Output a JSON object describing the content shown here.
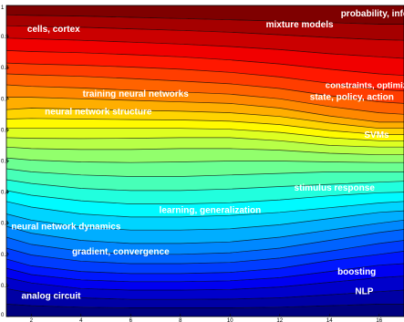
{
  "chart_data": {
    "type": "area",
    "stacked": true,
    "xlim": [
      1,
      17
    ],
    "ylim": [
      0,
      1
    ],
    "x": [
      1,
      2,
      4,
      6,
      8,
      10,
      12,
      14,
      16,
      17
    ],
    "xticks": [
      2,
      4,
      6,
      8,
      10,
      12,
      14,
      16
    ],
    "yticks": [
      0,
      0.1,
      0.2,
      0.3,
      0.4,
      0.5,
      0.6,
      0.7,
      0.8,
      0.9,
      1
    ],
    "colormap": "jet",
    "colormap_stops": [
      "#00007f",
      "#0000ff",
      "#007fff",
      "#00ffff",
      "#7fff7f",
      "#ffff00",
      "#ff7f00",
      "#ff0000",
      "#7f0000"
    ],
    "line_color": "#000000",
    "grid": false,
    "legend": "none",
    "boundaries": [
      [
        0.04,
        0.035,
        0.03,
        0.028,
        0.028,
        0.028,
        0.03,
        0.035,
        0.04,
        0.04
      ],
      [
        0.09,
        0.075,
        0.06,
        0.055,
        0.055,
        0.056,
        0.06,
        0.07,
        0.08,
        0.085
      ],
      [
        0.125,
        0.108,
        0.09,
        0.085,
        0.085,
        0.087,
        0.095,
        0.11,
        0.125,
        0.13
      ],
      [
        0.155,
        0.135,
        0.118,
        0.112,
        0.112,
        0.115,
        0.125,
        0.145,
        0.165,
        0.17
      ],
      [
        0.185,
        0.163,
        0.145,
        0.138,
        0.138,
        0.142,
        0.155,
        0.18,
        0.2,
        0.21
      ],
      [
        0.22,
        0.198,
        0.178,
        0.17,
        0.17,
        0.174,
        0.188,
        0.21,
        0.235,
        0.245
      ],
      [
        0.255,
        0.232,
        0.21,
        0.2,
        0.2,
        0.205,
        0.22,
        0.245,
        0.27,
        0.28
      ],
      [
        0.29,
        0.268,
        0.245,
        0.235,
        0.235,
        0.24,
        0.255,
        0.278,
        0.3,
        0.31
      ],
      [
        0.33,
        0.31,
        0.288,
        0.278,
        0.278,
        0.282,
        0.295,
        0.315,
        0.335,
        0.34
      ],
      [
        0.37,
        0.352,
        0.33,
        0.32,
        0.32,
        0.325,
        0.335,
        0.35,
        0.365,
        0.37
      ],
      [
        0.405,
        0.39,
        0.372,
        0.362,
        0.362,
        0.366,
        0.375,
        0.388,
        0.398,
        0.4
      ],
      [
        0.44,
        0.428,
        0.412,
        0.405,
        0.405,
        0.41,
        0.418,
        0.425,
        0.432,
        0.435
      ],
      [
        0.475,
        0.465,
        0.455,
        0.45,
        0.45,
        0.455,
        0.46,
        0.465,
        0.465,
        0.465
      ],
      [
        0.51,
        0.503,
        0.497,
        0.495,
        0.497,
        0.5,
        0.5,
        0.497,
        0.495,
        0.495
      ],
      [
        0.545,
        0.54,
        0.537,
        0.537,
        0.54,
        0.54,
        0.535,
        0.525,
        0.52,
        0.52
      ],
      [
        0.575,
        0.573,
        0.572,
        0.573,
        0.575,
        0.575,
        0.565,
        0.55,
        0.545,
        0.545
      ],
      [
        0.605,
        0.605,
        0.605,
        0.605,
        0.605,
        0.602,
        0.592,
        0.575,
        0.565,
        0.565
      ],
      [
        0.635,
        0.637,
        0.635,
        0.633,
        0.632,
        0.628,
        0.617,
        0.598,
        0.585,
        0.585
      ],
      [
        0.665,
        0.67,
        0.667,
        0.663,
        0.66,
        0.655,
        0.643,
        0.622,
        0.605,
        0.605
      ],
      [
        0.705,
        0.705,
        0.7,
        0.695,
        0.69,
        0.685,
        0.67,
        0.645,
        0.625,
        0.625
      ],
      [
        0.745,
        0.74,
        0.735,
        0.728,
        0.722,
        0.715,
        0.7,
        0.675,
        0.655,
        0.65
      ],
      [
        0.78,
        0.777,
        0.772,
        0.765,
        0.757,
        0.748,
        0.733,
        0.71,
        0.69,
        0.685
      ],
      [
        0.815,
        0.812,
        0.808,
        0.802,
        0.795,
        0.785,
        0.77,
        0.75,
        0.73,
        0.725
      ],
      [
        0.855,
        0.852,
        0.848,
        0.842,
        0.835,
        0.825,
        0.812,
        0.795,
        0.78,
        0.775
      ],
      [
        0.895,
        0.893,
        0.888,
        0.882,
        0.876,
        0.868,
        0.858,
        0.845,
        0.835,
        0.83
      ],
      [
        0.935,
        0.933,
        0.93,
        0.925,
        0.92,
        0.914,
        0.906,
        0.897,
        0.89,
        0.888
      ],
      [
        0.97,
        0.968,
        0.966,
        0.962,
        0.958,
        0.954,
        0.95,
        0.945,
        0.94,
        0.94
      ]
    ],
    "annotations": [
      {
        "text": "probability, inference",
        "x": 16.3,
        "y": 0.975,
        "size": 10,
        "color": "#ffffff",
        "anchor": "middle"
      },
      {
        "text": "cells, cortex",
        "x": 2.9,
        "y": 0.925,
        "size": 10,
        "color": "#ffffff",
        "anchor": "middle"
      },
      {
        "text": "mixture models",
        "x": 12.8,
        "y": 0.94,
        "size": 10,
        "color": "#ffffff",
        "anchor": "middle"
      },
      {
        "text": "constraints, optimization",
        "x": 15.9,
        "y": 0.745,
        "size": 9.5,
        "color": "#ffffff",
        "anchor": "middle"
      },
      {
        "text": "state, policy, action",
        "x": 14.9,
        "y": 0.707,
        "size": 10,
        "color": "#ffffff",
        "anchor": "middle"
      },
      {
        "text": "training neural networks",
        "x": 6.2,
        "y": 0.717,
        "size": 10,
        "color": "#ffffff",
        "anchor": "middle"
      },
      {
        "text": "neural network structure",
        "x": 4.7,
        "y": 0.66,
        "size": 10,
        "color": "#111111",
        "anchor": "middle"
      },
      {
        "text": "SVMs",
        "x": 15.9,
        "y": 0.585,
        "size": 10,
        "color": "#ffffff",
        "anchor": "middle"
      },
      {
        "text": "stimulus response",
        "x": 14.2,
        "y": 0.415,
        "size": 10,
        "color": "#ffffff",
        "anchor": "middle"
      },
      {
        "text": "learning, generalization",
        "x": 9.2,
        "y": 0.343,
        "size": 10,
        "color": "#ffffff",
        "anchor": "middle"
      },
      {
        "text": "neural network dynamics",
        "x": 3.4,
        "y": 0.29,
        "size": 10,
        "color": "#ffffff",
        "anchor": "middle"
      },
      {
        "text": "gradient, convergence",
        "x": 5.6,
        "y": 0.21,
        "size": 10,
        "color": "#ffffff",
        "anchor": "middle"
      },
      {
        "text": "boosting",
        "x": 15.1,
        "y": 0.145,
        "size": 10,
        "color": "#ffffff",
        "anchor": "middle"
      },
      {
        "text": "NLP",
        "x": 15.4,
        "y": 0.082,
        "size": 10,
        "color": "#ffffff",
        "anchor": "middle"
      },
      {
        "text": "analog circuit",
        "x": 2.8,
        "y": 0.067,
        "size": 10,
        "color": "#ffffff",
        "anchor": "middle"
      }
    ]
  }
}
